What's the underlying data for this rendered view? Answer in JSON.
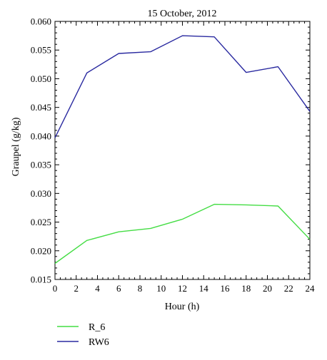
{
  "chart_data": {
    "type": "line",
    "title": "15 October, 2012",
    "xlabel": "Hour (h)",
    "ylabel": "Graupel (g/kg)",
    "xlim": [
      0,
      24
    ],
    "ylim": [
      0.015,
      0.06
    ],
    "x_ticks": [
      "0",
      "2",
      "4",
      "6",
      "8",
      "10",
      "12",
      "14",
      "16",
      "18",
      "20",
      "22",
      "24"
    ],
    "y_ticks": [
      "0.015",
      "0.020",
      "0.025",
      "0.030",
      "0.035",
      "0.040",
      "0.045",
      "0.050",
      "0.055",
      "0.060"
    ],
    "x": [
      0,
      3,
      6,
      9,
      12,
      15,
      18,
      21,
      24
    ],
    "series": [
      {
        "name": "R_6",
        "color": "#44dd44",
        "values": [
          0.0178,
          0.0218,
          0.0233,
          0.0239,
          0.0255,
          0.0281,
          0.028,
          0.0278,
          0.022
        ]
      },
      {
        "name": "RW6",
        "color": "#2a2aa0",
        "values": [
          0.0397,
          0.051,
          0.0544,
          0.0547,
          0.0575,
          0.0573,
          0.0511,
          0.0521,
          0.0443
        ]
      }
    ],
    "grid": false,
    "legend_position": "bottom-left"
  }
}
